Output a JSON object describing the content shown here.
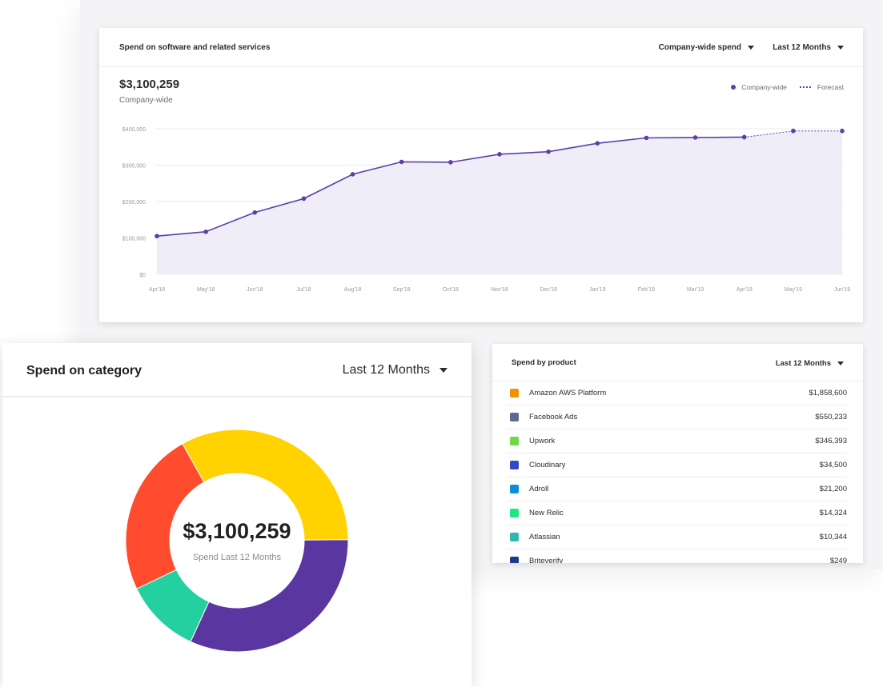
{
  "line_card": {
    "title": "Spend on software and related services",
    "scope_dropdown": "Company-wide spend",
    "period_dropdown": "Last 12 Months",
    "total_value": "$3,100,259",
    "total_label": "Company-wide",
    "legend": {
      "actual": "Company-wide",
      "forecast": "Forecast"
    }
  },
  "donut_card": {
    "title": "Spend on category",
    "period_dropdown": "Last 12 Months",
    "center_value": "$3,100,259",
    "center_label": "Spend Last 12 Months"
  },
  "product_card": {
    "title": "Spend by product",
    "period_dropdown": "Last 12 Months",
    "rows": [
      {
        "name": "Amazon AWS Platform",
        "value": "$1,858,600",
        "icon": "aws-icon",
        "color": "#f29100"
      },
      {
        "name": "Facebook Ads",
        "value": "$550,233",
        "icon": "megaphone-icon",
        "color": "#5b6b8c"
      },
      {
        "name": "Upwork",
        "value": "$346,393",
        "icon": "upwork-icon",
        "color": "#6fda44"
      },
      {
        "name": "Cloudinary",
        "value": "$34,500",
        "icon": "cloud-icon",
        "color": "#3448c5"
      },
      {
        "name": "Adroll",
        "value": "$21,200",
        "icon": "adroll-icon",
        "color": "#0d8ed9"
      },
      {
        "name": "New Relic",
        "value": "$14,324",
        "icon": "eye-icon",
        "color": "#1ce783"
      },
      {
        "name": "Atlassian",
        "value": "$10,344",
        "icon": "trophy-icon",
        "color": "#2eb8b0"
      },
      {
        "name": "Briteverify",
        "value": "$249",
        "icon": "b-icon",
        "color": "#1f3a8a"
      }
    ]
  },
  "chart_data": [
    {
      "type": "line",
      "categories": [
        "Apr'18",
        "May'18",
        "Jun'18",
        "Jul'18",
        "Aug'18",
        "Sep'18",
        "Oct'18",
        "Nov'18",
        "Dec'18",
        "Jan'19",
        "Feb'19",
        "Mar'19",
        "Apr'19",
        "May'19",
        "Jun'19"
      ],
      "series": [
        {
          "name": "Company-wide",
          "values": [
            105000,
            117000,
            170000,
            208000,
            275000,
            309000,
            308000,
            330000,
            337000,
            360000,
            375000,
            376000,
            377000,
            null,
            null
          ],
          "color": "#5d3fa5"
        },
        {
          "name": "Forecast",
          "values": [
            null,
            null,
            null,
            null,
            null,
            null,
            null,
            null,
            null,
            null,
            null,
            null,
            377000,
            394000,
            394000
          ],
          "color": "#5d3fa5"
        }
      ],
      "yticks": [
        "$0",
        "$100,000",
        "$200,000",
        "$300,000",
        "$400,000"
      ],
      "ylim": [
        0,
        400000
      ],
      "grid": true,
      "legend_position": "top-right"
    },
    {
      "type": "pie",
      "donut": true,
      "slices": [
        {
          "value": 24,
          "color": "#ff4b2e"
        },
        {
          "value": 33,
          "color": "#ffd200"
        },
        {
          "value": 32,
          "color": "#5a37a0"
        },
        {
          "value": 11,
          "color": "#24cfa0"
        }
      ]
    }
  ]
}
